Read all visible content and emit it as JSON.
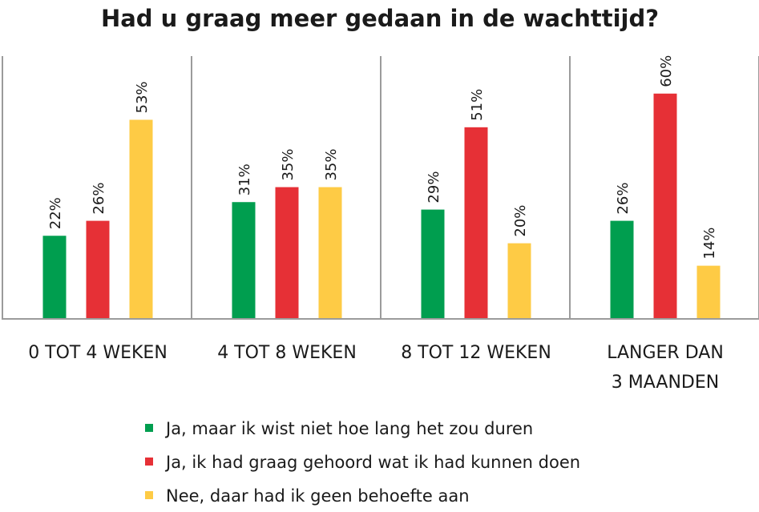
{
  "chart_data": {
    "type": "bar",
    "title": "Had u graag meer gedaan in de wachttijd?",
    "categories": [
      [
        "0 TOT 4 WEKEN"
      ],
      [
        "4 TOT 8 WEKEN"
      ],
      [
        "8 TOT 12 WEKEN"
      ],
      [
        "LANGER DAN",
        "3 MAANDEN"
      ]
    ],
    "series": [
      {
        "name": "Ja, maar ik wist niet hoe lang het zou duren",
        "color": "#009e4f",
        "values": [
          22,
          31,
          29,
          26
        ]
      },
      {
        "name": "Ja, ik had graag gehoord wat ik had kunnen doen",
        "color": "#e63036",
        "values": [
          26,
          35,
          51,
          60
        ]
      },
      {
        "name": "Nee, daar had ik geen behoefte aan",
        "color": "#fecb45",
        "values": [
          53,
          35,
          20,
          14
        ]
      }
    ],
    "value_suffix": "%",
    "xlabel": "",
    "ylabel": "",
    "ylim": [
      0,
      70
    ],
    "grid": false,
    "legend_position": "bottom"
  }
}
